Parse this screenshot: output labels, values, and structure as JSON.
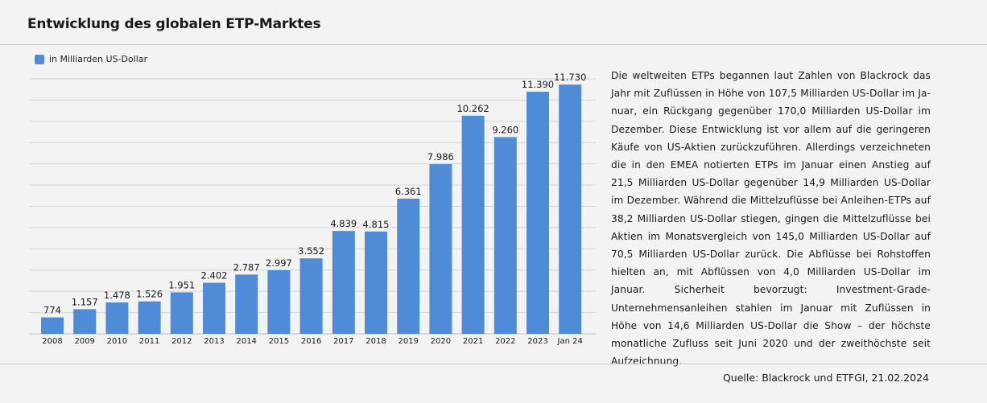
{
  "header": {
    "title": "Entwicklung des globalen ETP-Marktes"
  },
  "chart_data": {
    "type": "bar",
    "categories": [
      "2008",
      "2009",
      "2010",
      "2011",
      "2012",
      "2013",
      "2014",
      "2015",
      "2016",
      "2017",
      "2018",
      "2019",
      "2020",
      "2021",
      "2022",
      "2023",
      "Jan 24"
    ],
    "series": [
      {
        "name": "in Milliarden US-Dollar",
        "values": [
          774,
          1157,
          1478,
          1526,
          1951,
          2402,
          2787,
          2997,
          3552,
          4839,
          4815,
          6361,
          7986,
          10262,
          9260,
          11390,
          11730
        ],
        "labels": [
          "774",
          "1.157",
          "1.478",
          "1.526",
          "1.951",
          "2.402",
          "2.787",
          "2.997",
          "3.552",
          "4.839",
          "4.815",
          "6.361",
          "7.986",
          "10.262",
          "9.260",
          "11.390",
          "11.730"
        ],
        "color": "#4f8bd6"
      }
    ],
    "ylim": [
      0,
      12000
    ],
    "grid": true,
    "legend": "top-left",
    "y_axis_labels_visible": false
  },
  "text": {
    "body": "Die weltweiten ETPs begannen laut Zahlen von Blackrock das Jahr mit Zuflüssen in Höhe von 107,5 Milliarden US-Dollar im Ja­nuar, ein Rückgang gegenüber 170,0 Milliarden US-Dollar im De­zember. Diese Entwicklung ist vor allem auf die geringeren Käufe von US-Aktien zurückzuführen. Allerdings verzeichneten die in den EMEA notierten ETPs im Januar einen Anstieg auf 21,5 Mil­liarden US-Dollar gegenüber 14,9 Milliarden US-Dollar im De­zember. Während die Mittelzuflüsse bei Anleihen-ETPs auf 38,2 Milliarden US-Dollar stiegen, gingen die Mittelzuflüsse bei Aktien im Monatsvergleich von 145,0 Milliarden US-Dollar auf 70,5 Mil­liarden US-Dollar zurück. Die Abflüsse bei Rohstoffen hielten an, mit Abflüssen von 4,0 Milliarden US-Dollar im Januar. Sicherheit bevorzugt: Investment-Grade-Unternehmensanleihen stahlen im Januar mit Zuflüssen in Höhe von 14,6 Milliarden US-Dollar die Show – der höchste monatliche Zufluss seit Juni 2020 und der zweithöchste seit Aufzeichnung."
  },
  "footer": {
    "source": "Quelle: Blackrock und ETFGI, 21.02.2024"
  }
}
